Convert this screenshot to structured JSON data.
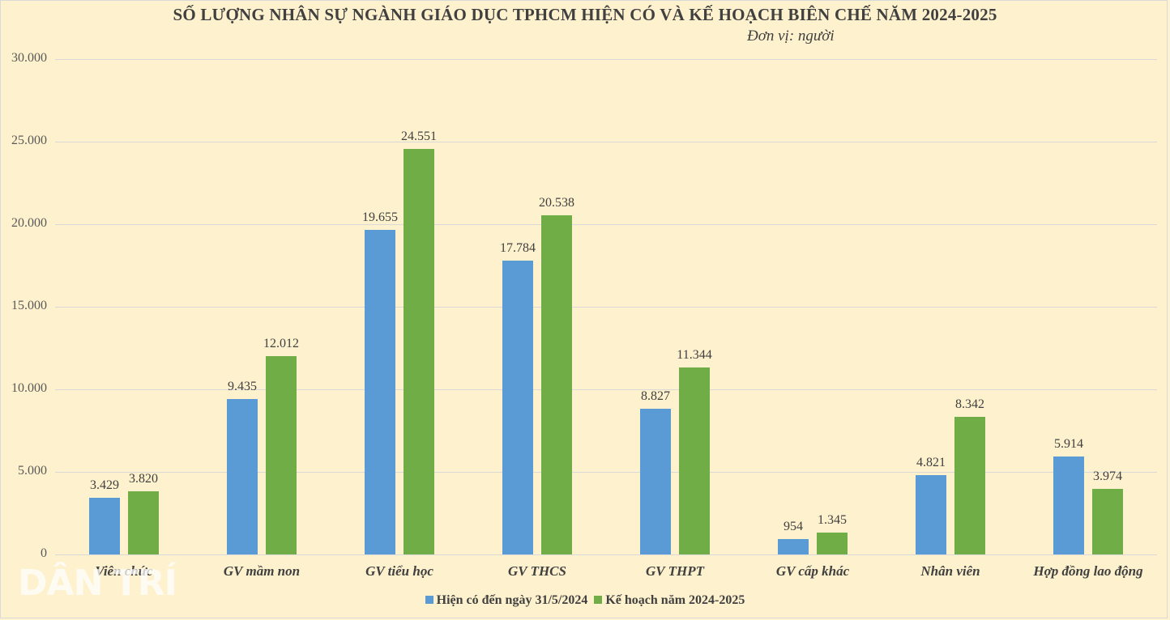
{
  "chart_data": {
    "type": "bar",
    "title": "SỐ LƯỢNG NHÂN SỰ NGÀNH GIÁO DỤC TPHCM HIỆN CÓ VÀ KẾ HOẠCH BIÊN CHẾ NĂM 2024-2025",
    "subtitle": "Đơn vị: người",
    "xlabel": "",
    "ylabel": "",
    "ylim": [
      0,
      30000
    ],
    "yticks": [
      0,
      5000,
      10000,
      15000,
      20000,
      25000,
      30000
    ],
    "ytick_labels": [
      "0",
      "5.000",
      "10.000",
      "15.000",
      "20.000",
      "25.000",
      "30.000"
    ],
    "grid": true,
    "legend_position": "bottom",
    "categories": [
      "Viên chức",
      "GV mầm non",
      "GV tiểu học",
      "GV THCS",
      "GV THPT",
      "GV cấp khác",
      "Nhân viên",
      "Hợp đồng lao động"
    ],
    "series": [
      {
        "name": "Hiện có đến ngày 31/5/2024",
        "color": "#5b9bd5",
        "values": [
          3429,
          9435,
          19655,
          17784,
          8827,
          954,
          4821,
          5914
        ],
        "labels": [
          "3.429",
          "9.435",
          "19.655",
          "17.784",
          "8.827",
          "954",
          "4.821",
          "5.914"
        ]
      },
      {
        "name": "Kế hoạch năm 2024-2025",
        "color": "#70ad47",
        "values": [
          3820,
          12012,
          24551,
          20538,
          11344,
          1345,
          8342,
          3974
        ],
        "labels": [
          "3.820",
          "12.012",
          "24.551",
          "20.538",
          "11.344",
          "1.345",
          "8.342",
          "3.974"
        ]
      }
    ]
  },
  "watermark": "DÂN TRÍ"
}
